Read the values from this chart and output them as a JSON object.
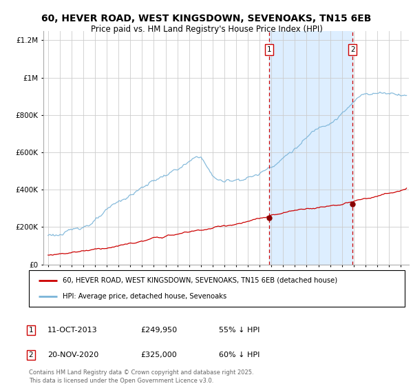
{
  "title": "60, HEVER ROAD, WEST KINGSDOWN, SEVENOAKS, TN15 6EB",
  "subtitle": "Price paid vs. HM Land Registry's House Price Index (HPI)",
  "title_fontsize": 10,
  "subtitle_fontsize": 8.5,
  "background_color": "#ffffff",
  "plot_bg_color": "#ffffff",
  "hpi_color": "#7ab4d8",
  "property_color": "#cc0000",
  "grid_color": "#cccccc",
  "shaded_color": "#ddeeff",
  "dashed_line_color": "#cc0000",
  "legend_property": "60, HEVER ROAD, WEST KINGSDOWN, SEVENOAKS, TN15 6EB (detached house)",
  "legend_hpi": "HPI: Average price, detached house, Sevenoaks",
  "sale1_date": "11-OCT-2013",
  "sale1_price": "£249,950",
  "sale1_hpi": "55% ↓ HPI",
  "sale2_date": "20-NOV-2020",
  "sale2_price": "£325,000",
  "sale2_hpi": "60% ↓ HPI",
  "footer": "Contains HM Land Registry data © Crown copyright and database right 2025.\nThis data is licensed under the Open Government Licence v3.0.",
  "ylim": [
    0,
    1250000
  ],
  "ylabel_ticks": [
    0,
    200000,
    400000,
    600000,
    800000,
    1000000,
    1200000
  ],
  "ylabel_labels": [
    "£0",
    "£200K",
    "£400K",
    "£600K",
    "£800K",
    "£1M",
    "£1.2M"
  ]
}
